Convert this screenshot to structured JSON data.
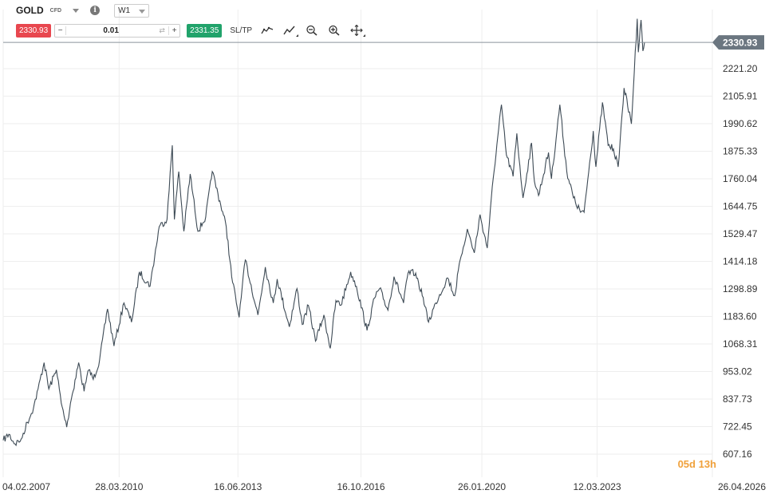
{
  "toolbar": {
    "symbol": "GOLD",
    "instrument_type": "CFD",
    "info_icon": "i",
    "timeframe": "W1",
    "sell_price": "2330.93",
    "quantity": "0.01",
    "minus_label": "−",
    "plus_label": "+",
    "buy_price": "2331.35",
    "sltp_label": "SL/TP",
    "icons": [
      "line-chart-type-icon",
      "indicators-icon",
      "zoom-out-icon",
      "zoom-in-icon",
      "crosshair-move-icon"
    ]
  },
  "countdown": "05d 13h",
  "colors": {
    "line": "#3d4a55",
    "sell": "#e8474f",
    "buy": "#21a36b",
    "price_tag": "#6b7680",
    "grid": "#eeeeee",
    "countdown": "#f0a13b"
  },
  "chart_data": {
    "type": "line",
    "title": "",
    "xlabel": "",
    "ylabel": "",
    "current_price": 2330.93,
    "current_price_label": "2330.93",
    "ylim": [
      607.16,
      2380
    ],
    "y_ticks": [
      2221.2,
      2105.91,
      1990.62,
      1875.33,
      1760.04,
      1644.75,
      1529.47,
      1414.18,
      1298.89,
      1183.6,
      1068.31,
      953.02,
      837.73,
      722.45,
      607.16
    ],
    "y_tick_labels": [
      "2221.20",
      "2105.91",
      "1990.62",
      "1875.33",
      "1760.04",
      "1644.75",
      "1529.47",
      "1414.18",
      "1298.89",
      "1183.60",
      "1068.31",
      "953.02",
      "837.73",
      "722.45",
      "607.16"
    ],
    "xlim": [
      "2007-02-04",
      "2026-04-26"
    ],
    "x_ticks": [
      "2007-02-04",
      "2010-03-28",
      "2013-06-16",
      "2016-10-16",
      "2020-01-26",
      "2023-03-12",
      "2026-04-26"
    ],
    "x_tick_labels": [
      "04.02.2007",
      "28.03.2010",
      "16.06.2013",
      "16.10.2016",
      "26.01.2020",
      "12.03.2023",
      "26.04.2026"
    ],
    "grid": true,
    "series": [
      {
        "points": [
          [
            "2007-02-04",
            665
          ],
          [
            "2007-04-01",
            690
          ],
          [
            "2007-06-01",
            650
          ],
          [
            "2007-08-01",
            670
          ],
          [
            "2007-10-01",
            740
          ],
          [
            "2007-12-01",
            800
          ],
          [
            "2008-01-15",
            880
          ],
          [
            "2008-03-15",
            990
          ],
          [
            "2008-05-01",
            880
          ],
          [
            "2008-07-15",
            960
          ],
          [
            "2008-09-01",
            820
          ],
          [
            "2008-10-25",
            720
          ],
          [
            "2008-12-01",
            820
          ],
          [
            "2009-02-20",
            990
          ],
          [
            "2009-04-15",
            870
          ],
          [
            "2009-06-01",
            960
          ],
          [
            "2009-07-15",
            920
          ],
          [
            "2009-09-15",
            1000
          ],
          [
            "2009-12-03",
            1215
          ],
          [
            "2010-02-05",
            1060
          ],
          [
            "2010-05-15",
            1240
          ],
          [
            "2010-07-28",
            1160
          ],
          [
            "2010-10-15",
            1370
          ],
          [
            "2011-01-28",
            1310
          ],
          [
            "2011-04-29",
            1560
          ],
          [
            "2011-07-15",
            1590
          ],
          [
            "2011-09-05",
            1900
          ],
          [
            "2011-09-26",
            1590
          ],
          [
            "2011-11-08",
            1790
          ],
          [
            "2011-12-29",
            1540
          ],
          [
            "2012-02-29",
            1780
          ],
          [
            "2012-05-16",
            1540
          ],
          [
            "2012-08-01",
            1600
          ],
          [
            "2012-10-05",
            1790
          ],
          [
            "2012-12-28",
            1650
          ],
          [
            "2013-02-20",
            1560
          ],
          [
            "2013-04-15",
            1350
          ],
          [
            "2013-06-28",
            1180
          ],
          [
            "2013-08-28",
            1420
          ],
          [
            "2013-12-31",
            1190
          ],
          [
            "2014-03-14",
            1390
          ],
          [
            "2014-06-01",
            1240
          ],
          [
            "2014-07-10",
            1340
          ],
          [
            "2014-11-07",
            1140
          ],
          [
            "2015-01-22",
            1300
          ],
          [
            "2015-03-15",
            1150
          ],
          [
            "2015-05-15",
            1230
          ],
          [
            "2015-07-24",
            1080
          ],
          [
            "2015-10-15",
            1190
          ],
          [
            "2015-12-17",
            1050
          ],
          [
            "2016-02-11",
            1250
          ],
          [
            "2016-03-31",
            1230
          ],
          [
            "2016-07-06",
            1370
          ],
          [
            "2016-09-01",
            1310
          ],
          [
            "2016-12-15",
            1125
          ],
          [
            "2017-02-27",
            1260
          ],
          [
            "2017-04-18",
            1300
          ],
          [
            "2017-07-10",
            1210
          ],
          [
            "2017-09-08",
            1350
          ],
          [
            "2017-12-12",
            1240
          ],
          [
            "2018-01-25",
            1365
          ],
          [
            "2018-04-11",
            1365
          ],
          [
            "2018-06-15",
            1270
          ],
          [
            "2018-08-16",
            1160
          ],
          [
            "2018-10-26",
            1240
          ],
          [
            "2019-02-20",
            1345
          ],
          [
            "2019-05-02",
            1270
          ],
          [
            "2019-06-25",
            1420
          ],
          [
            "2019-09-04",
            1550
          ],
          [
            "2019-11-12",
            1450
          ],
          [
            "2020-01-08",
            1610
          ],
          [
            "2020-03-19",
            1470
          ],
          [
            "2020-05-18",
            1765
          ],
          [
            "2020-08-07",
            2070
          ],
          [
            "2020-09-25",
            1860
          ],
          [
            "2020-11-30",
            1770
          ],
          [
            "2021-01-06",
            1950
          ],
          [
            "2021-03-08",
            1680
          ],
          [
            "2021-06-01",
            1910
          ],
          [
            "2021-06-29",
            1750
          ],
          [
            "2021-08-09",
            1690
          ],
          [
            "2021-11-16",
            1870
          ],
          [
            "2021-12-15",
            1760
          ],
          [
            "2022-03-08",
            2070
          ],
          [
            "2022-05-16",
            1790
          ],
          [
            "2022-07-21",
            1680
          ],
          [
            "2022-09-28",
            1620
          ],
          [
            "2022-11-03",
            1620
          ],
          [
            "2023-02-02",
            1960
          ],
          [
            "2023-02-28",
            1810
          ],
          [
            "2023-05-04",
            2080
          ],
          [
            "2023-06-29",
            1900
          ],
          [
            "2023-08-21",
            1885
          ],
          [
            "2023-10-06",
            1810
          ],
          [
            "2023-12-04",
            2140
          ],
          [
            "2024-02-14",
            1990
          ],
          [
            "2024-04-12",
            2430
          ],
          [
            "2024-04-23",
            2290
          ],
          [
            "2024-05-20",
            2425
          ],
          [
            "2024-06-07",
            2295
          ],
          [
            "2024-06-23",
            2330.93
          ]
        ]
      }
    ]
  }
}
